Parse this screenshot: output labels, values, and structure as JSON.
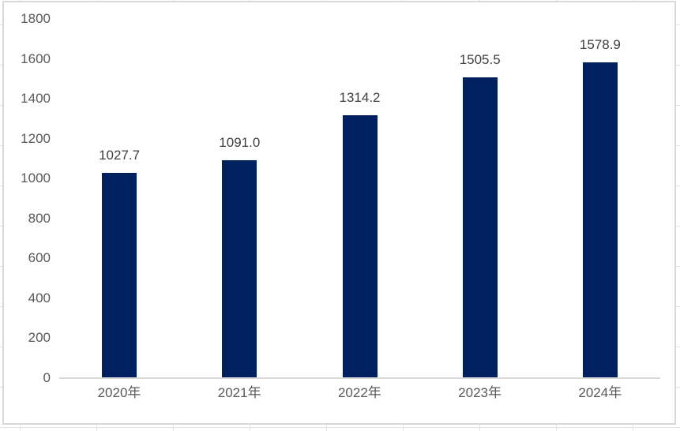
{
  "chart_data": {
    "type": "bar",
    "title": "",
    "categories": [
      "2020年",
      "2021年",
      "2022年",
      "2023年",
      "2024年"
    ],
    "values": [
      1027.7,
      1091.0,
      1314.2,
      1505.5,
      1578.9
    ],
    "data_labels": [
      "1027.7",
      "1091.0",
      "1314.2",
      "1505.5",
      "1578.9"
    ],
    "xlabel": "",
    "ylabel": "",
    "ylim": [
      0,
      1800
    ],
    "yticks": [
      0,
      200,
      400,
      600,
      800,
      1000,
      1200,
      1400,
      1600,
      1800
    ],
    "grid": false,
    "legend": false,
    "colors": {
      "bar": "#002060",
      "axis_labels": "#595959",
      "data_labels": "#3f3f3f",
      "axis_line": "#d9d9d9",
      "chart_border": "#d9d9d9",
      "chart_background": "#ffffff"
    }
  }
}
